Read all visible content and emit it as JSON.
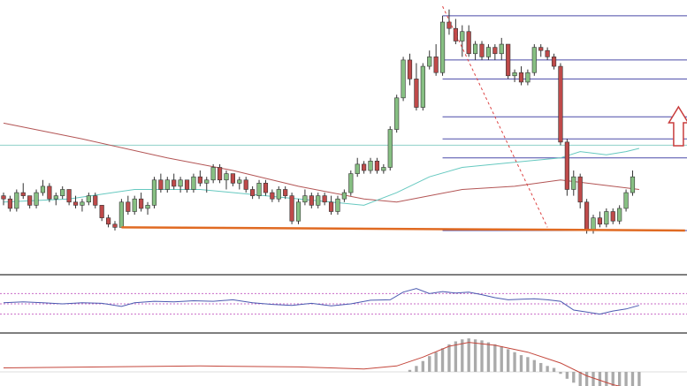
{
  "chart_data": {
    "type": "candlestick",
    "title": "",
    "xlabel": "",
    "ylabel": "",
    "grid": false,
    "legend": "none",
    "x_range": [
      0,
      107
    ],
    "y_range": [
      0,
      100
    ],
    "candles": [
      [
        0,
        50,
        51,
        47,
        49
      ],
      [
        1,
        49,
        50,
        45,
        46
      ],
      [
        2,
        46,
        52,
        45,
        51
      ],
      [
        3,
        51,
        54,
        49,
        50
      ],
      [
        4,
        50,
        50,
        46,
        47
      ],
      [
        5,
        47,
        52,
        46,
        51
      ],
      [
        6,
        51,
        55,
        50,
        53
      ],
      [
        7,
        53,
        54,
        48,
        49
      ],
      [
        8,
        49,
        51,
        47,
        50
      ],
      [
        9,
        50,
        53,
        49,
        52
      ],
      [
        10,
        52,
        52,
        47,
        48
      ],
      [
        11,
        48,
        50,
        46,
        47
      ],
      [
        12,
        47,
        49,
        45,
        48
      ],
      [
        13,
        48,
        51,
        47,
        50
      ],
      [
        14,
        50,
        51,
        46,
        47
      ],
      [
        15,
        47,
        47,
        42,
        43
      ],
      [
        16,
        43,
        44,
        40,
        41
      ],
      [
        17,
        41,
        42,
        39,
        40
      ],
      [
        18,
        40,
        49,
        40,
        48
      ],
      [
        19,
        48,
        50,
        44,
        45
      ],
      [
        20,
        45,
        50,
        44,
        49
      ],
      [
        21,
        49,
        51,
        45,
        46
      ],
      [
        22,
        46,
        48,
        44,
        47
      ],
      [
        23,
        47,
        56,
        46,
        55
      ],
      [
        24,
        55,
        57,
        51,
        52
      ],
      [
        25,
        52,
        56,
        51,
        55
      ],
      [
        26,
        55,
        57,
        52,
        53
      ],
      [
        27,
        53,
        56,
        51,
        55
      ],
      [
        28,
        55,
        55,
        51,
        52
      ],
      [
        29,
        52,
        57,
        51,
        56
      ],
      [
        30,
        56,
        58,
        53,
        54
      ],
      [
        31,
        54,
        56,
        51,
        55
      ],
      [
        32,
        55,
        60,
        54,
        59
      ],
      [
        33,
        59,
        60,
        54,
        55
      ],
      [
        34,
        55,
        58,
        52,
        57
      ],
      [
        35,
        57,
        57,
        53,
        54
      ],
      [
        36,
        54,
        56,
        52,
        55
      ],
      [
        37,
        55,
        56,
        51,
        52
      ],
      [
        38,
        52,
        53,
        49,
        50
      ],
      [
        39,
        50,
        55,
        49,
        54
      ],
      [
        40,
        54,
        55,
        50,
        51
      ],
      [
        41,
        51,
        52,
        48,
        49
      ],
      [
        42,
        49,
        53,
        48,
        52
      ],
      [
        43,
        52,
        53,
        49,
        50
      ],
      [
        44,
        50,
        51,
        41,
        42
      ],
      [
        45,
        42,
        49,
        41,
        48
      ],
      [
        46,
        48,
        52,
        47,
        50
      ],
      [
        47,
        50,
        51,
        46,
        47
      ],
      [
        48,
        47,
        51,
        46,
        50
      ],
      [
        49,
        50,
        51,
        47,
        48
      ],
      [
        50,
        48,
        50,
        44,
        45
      ],
      [
        51,
        45,
        50,
        44,
        49
      ],
      [
        52,
        49,
        52,
        48,
        51
      ],
      [
        53,
        51,
        58,
        50,
        57
      ],
      [
        54,
        57,
        62,
        56,
        60
      ],
      [
        55,
        60,
        61,
        57,
        58
      ],
      [
        56,
        58,
        62,
        57,
        61
      ],
      [
        57,
        61,
        62,
        57,
        58
      ],
      [
        58,
        58,
        60,
        57,
        59
      ],
      [
        59,
        59,
        72,
        58,
        71
      ],
      [
        60,
        71,
        82,
        70,
        81
      ],
      [
        61,
        81,
        94,
        80,
        93
      ],
      [
        62,
        93,
        95,
        85,
        87
      ],
      [
        63,
        87,
        92,
        77,
        78
      ],
      [
        64,
        78,
        92,
        77,
        91
      ],
      [
        65,
        91,
        96,
        90,
        94
      ],
      [
        66,
        94,
        98,
        88,
        89
      ],
      [
        67,
        89,
        107,
        88,
        105
      ],
      [
        68,
        105,
        109,
        101,
        103
      ],
      [
        69,
        103,
        106,
        98,
        99
      ],
      [
        70,
        99,
        104,
        94,
        102
      ],
      [
        71,
        102,
        104,
        94,
        95
      ],
      [
        72,
        95,
        99,
        93,
        98
      ],
      [
        73,
        98,
        99,
        93,
        94
      ],
      [
        74,
        94,
        98,
        93,
        97
      ],
      [
        75,
        97,
        98,
        93,
        95
      ],
      [
        76,
        95,
        100,
        93,
        98
      ],
      [
        77,
        98,
        98,
        87,
        88
      ],
      [
        78,
        88,
        90,
        86,
        89
      ],
      [
        79,
        89,
        91,
        85,
        86
      ],
      [
        80,
        86,
        90,
        85,
        89
      ],
      [
        81,
        89,
        98,
        88,
        97
      ],
      [
        82,
        97,
        98,
        94,
        96
      ],
      [
        83,
        96,
        97,
        93,
        94
      ],
      [
        84,
        94,
        95,
        90,
        91
      ],
      [
        85,
        91,
        92,
        66,
        67
      ],
      [
        86,
        67,
        68,
        50,
        52
      ],
      [
        87,
        52,
        58,
        50,
        56
      ],
      [
        88,
        56,
        57,
        46,
        48
      ],
      [
        89,
        48,
        49,
        38,
        39
      ],
      [
        90,
        39,
        44,
        38,
        43
      ],
      [
        91,
        43,
        45,
        40,
        41
      ],
      [
        92,
        41,
        46,
        40,
        45
      ],
      [
        93,
        45,
        46,
        41,
        42
      ],
      [
        94,
        42,
        47,
        41,
        46
      ],
      [
        95,
        46,
        52,
        45,
        51
      ],
      [
        96,
        51,
        58,
        50,
        56
      ]
    ],
    "ma_red": [
      [
        0,
        73
      ],
      [
        12,
        68
      ],
      [
        25,
        62
      ],
      [
        35,
        58
      ],
      [
        45,
        53
      ],
      [
        55,
        49
      ],
      [
        60,
        48
      ],
      [
        65,
        50
      ],
      [
        70,
        52
      ],
      [
        78,
        53
      ],
      [
        85,
        55
      ],
      [
        89,
        54
      ],
      [
        93,
        53
      ],
      [
        97,
        52
      ]
    ],
    "ma_cyan": [
      [
        0,
        48
      ],
      [
        10,
        49
      ],
      [
        20,
        52
      ],
      [
        30,
        52
      ],
      [
        40,
        50
      ],
      [
        50,
        48
      ],
      [
        55,
        47
      ],
      [
        60,
        51
      ],
      [
        65,
        56
      ],
      [
        70,
        59
      ],
      [
        75,
        60
      ],
      [
        80,
        61
      ],
      [
        85,
        62
      ],
      [
        88,
        64
      ],
      [
        92,
        63
      ],
      [
        95,
        64
      ],
      [
        97,
        65
      ]
    ],
    "fib_levels": [
      107,
      93,
      87,
      75,
      68,
      62,
      39
    ],
    "horizontal_line": 66,
    "trendline_orange": [
      [
        18,
        40
      ],
      [
        104,
        39
      ]
    ],
    "trendline_red_dashed": [
      [
        67,
        110
      ],
      [
        83,
        40
      ]
    ],
    "arrow_up_at": [
      103,
      72
    ],
    "rsi": {
      "y_range": [
        0,
        100
      ],
      "levels_dashed": [
        70,
        50,
        30
      ],
      "points": [
        [
          0,
          52
        ],
        [
          3,
          54
        ],
        [
          6,
          52
        ],
        [
          9,
          50
        ],
        [
          12,
          52
        ],
        [
          15,
          51
        ],
        [
          18,
          45
        ],
        [
          20,
          52
        ],
        [
          23,
          55
        ],
        [
          26,
          54
        ],
        [
          29,
          56
        ],
        [
          32,
          55
        ],
        [
          35,
          58
        ],
        [
          38,
          52
        ],
        [
          41,
          49
        ],
        [
          44,
          47
        ],
        [
          47,
          51
        ],
        [
          50,
          46
        ],
        [
          53,
          50
        ],
        [
          56,
          57
        ],
        [
          59,
          58
        ],
        [
          61,
          73
        ],
        [
          63,
          80
        ],
        [
          65,
          70
        ],
        [
          67,
          74
        ],
        [
          69,
          71
        ],
        [
          71,
          73
        ],
        [
          73,
          68
        ],
        [
          75,
          62
        ],
        [
          77,
          58
        ],
        [
          79,
          59
        ],
        [
          81,
          60
        ],
        [
          83,
          58
        ],
        [
          85,
          55
        ],
        [
          87,
          38
        ],
        [
          89,
          34
        ],
        [
          91,
          30
        ],
        [
          93,
          36
        ],
        [
          95,
          40
        ],
        [
          97,
          47
        ]
      ]
    },
    "macd": {
      "y_range": [
        -100,
        100
      ],
      "zero_line": 0,
      "histogram": [
        [
          62,
          4
        ],
        [
          63,
          12
        ],
        [
          64,
          22
        ],
        [
          65,
          32
        ],
        [
          66,
          40
        ],
        [
          67,
          48
        ],
        [
          68,
          56
        ],
        [
          69,
          62
        ],
        [
          70,
          66
        ],
        [
          71,
          68
        ],
        [
          72,
          66
        ],
        [
          73,
          64
        ],
        [
          74,
          60
        ],
        [
          75,
          56
        ],
        [
          76,
          52
        ],
        [
          77,
          46
        ],
        [
          78,
          40
        ],
        [
          79,
          34
        ],
        [
          80,
          30
        ],
        [
          81,
          24
        ],
        [
          82,
          18
        ],
        [
          83,
          12
        ],
        [
          84,
          8
        ],
        [
          85,
          -4
        ],
        [
          86,
          -14
        ],
        [
          87,
          -22
        ],
        [
          88,
          -30
        ],
        [
          89,
          -36
        ],
        [
          90,
          -40
        ],
        [
          91,
          -42
        ],
        [
          92,
          -40
        ],
        [
          93,
          -38
        ],
        [
          94,
          -36
        ],
        [
          95,
          -34
        ],
        [
          96,
          -32
        ],
        [
          97,
          -30
        ]
      ],
      "signal_line": [
        [
          0,
          8
        ],
        [
          15,
          10
        ],
        [
          30,
          12
        ],
        [
          45,
          10
        ],
        [
          55,
          6
        ],
        [
          60,
          12
        ],
        [
          64,
          30
        ],
        [
          68,
          52
        ],
        [
          71,
          60
        ],
        [
          75,
          54
        ],
        [
          80,
          40
        ],
        [
          85,
          18
        ],
        [
          89,
          -8
        ],
        [
          93,
          -26
        ],
        [
          97,
          -38
        ]
      ]
    },
    "colors": {
      "bull_body": "#87c083",
      "bear_body": "#bf4a4a",
      "wick": "#333333",
      "fib": "#4a4aa8",
      "ma_red": "#b35555",
      "ma_cyan": "#66c9c0",
      "trend_orange": "#e06a22",
      "trend_red": "#dd4444",
      "arrow": "#c93d3d",
      "separator": "#555555",
      "rsi_line": "#4b5ab0",
      "rsi_level": "#c96bc7",
      "macd_hist": "#aaaaaa",
      "macd_signal": "#c4473c",
      "hline": "#8fd1c8"
    }
  }
}
